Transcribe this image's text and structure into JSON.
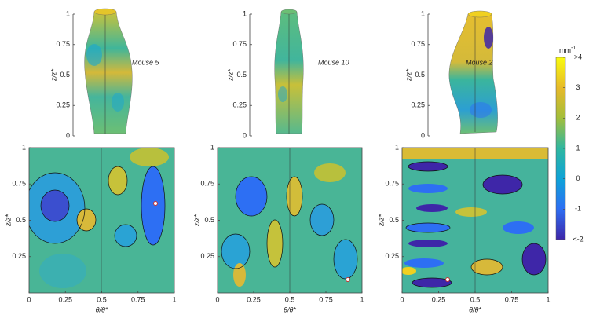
{
  "top_panels": [
    {
      "label": "Mouse 5",
      "ylabel": "z/z*",
      "ylim": [
        0,
        1
      ],
      "yticks": [
        0,
        0.25,
        0.5,
        0.75,
        1
      ]
    },
    {
      "label": "Mouse 10",
      "ylabel": "z/z*",
      "ylim": [
        0,
        1
      ],
      "yticks": [
        0,
        0.25,
        0.5,
        0.75,
        1
      ]
    },
    {
      "label": "Mouse 2",
      "ylabel": "z/z*",
      "ylim": [
        0,
        1
      ],
      "yticks": [
        0,
        0.25,
        0.5,
        0.75,
        1
      ]
    }
  ],
  "bottom_panels": [
    {
      "xlabel": "θ/θ*",
      "ylabel": "z/z*",
      "xlim": [
        0,
        1
      ],
      "ylim": [
        0,
        1
      ],
      "xticks": [
        0,
        0.25,
        0.5,
        0.75,
        1
      ],
      "yticks": [
        0.25,
        0.5,
        0.75,
        1
      ]
    },
    {
      "xlabel": "θ/θ*",
      "ylabel": "z/z*",
      "xlim": [
        0,
        1
      ],
      "ylim": [
        0,
        1
      ],
      "xticks": [
        0,
        0.25,
        0.5,
        0.75,
        1
      ],
      "yticks": [
        0.25,
        0.5,
        0.75,
        1
      ]
    },
    {
      "xlabel": "θ/θ*",
      "ylabel": "z/z*",
      "xlim": [
        0,
        1
      ],
      "ylim": [
        0,
        1
      ],
      "xticks": [
        0,
        0.25,
        0.5,
        0.75,
        1
      ],
      "yticks": [
        0.25,
        0.5,
        0.75,
        1
      ]
    }
  ],
  "colorbar": {
    "unit": "mm",
    "unit_exponent": "-1",
    "lim": [
      -2,
      4
    ],
    "ticks": [
      {
        "value": 4,
        "label": ">4"
      },
      3,
      2,
      1,
      0,
      -1,
      {
        "value": -2,
        "label": "<-2"
      }
    ]
  }
}
